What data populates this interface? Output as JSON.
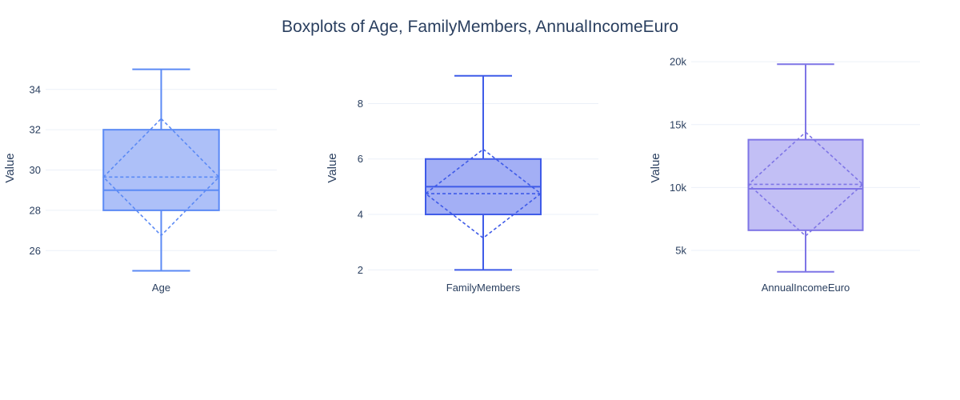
{
  "chart_data": {
    "title": "Boxplots of Age, FamilyMembers, AnnualIncomeEuro",
    "grid": true,
    "panels": [
      {
        "type": "box",
        "category": "Age",
        "ylabel": "Value",
        "ylim": [
          24.7,
          35.5
        ],
        "yticks": [
          26,
          28,
          30,
          32,
          34
        ],
        "ytick_labels": [
          "26",
          "28",
          "30",
          "32",
          "34"
        ],
        "min": 25,
        "q1": 28,
        "median": 29,
        "q3": 32,
        "max": 35,
        "mean": 29.65,
        "mean_minus_sd": 26.75,
        "mean_plus_sd": 32.55,
        "color": "#636efa",
        "stroke": "#5b8af5",
        "fill": "#a9bdf8"
      },
      {
        "type": "box",
        "category": "FamilyMembers",
        "ylabel": "Value",
        "ylim": [
          1.75,
          9.6
        ],
        "yticks": [
          2,
          4,
          6,
          8
        ],
        "ytick_labels": [
          "2",
          "4",
          "6",
          "8"
        ],
        "min": 2,
        "q1": 4,
        "median": 5,
        "q3": 6,
        "max": 9,
        "mean": 4.75,
        "mean_minus_sd": 3.15,
        "mean_plus_sd": 6.35,
        "color": "#3f5be8",
        "stroke": "#3f5be8",
        "fill": "#9eabf4"
      },
      {
        "type": "box",
        "category": "AnnualIncomeEuro",
        "ylabel": "Value",
        "ylim": [
          2900,
          20200
        ],
        "yticks": [
          5000,
          10000,
          15000,
          20000
        ],
        "ytick_labels": [
          "5k",
          "10k",
          "15k",
          "20k"
        ],
        "min": 3300,
        "q1": 6600,
        "median": 9900,
        "q3": 13800,
        "max": 19800,
        "mean": 10250,
        "mean_minus_sd": 6150,
        "mean_plus_sd": 14400,
        "color": "#7b6fe6",
        "stroke": "#7e75e6",
        "fill": "#bfbcf4"
      }
    ]
  }
}
